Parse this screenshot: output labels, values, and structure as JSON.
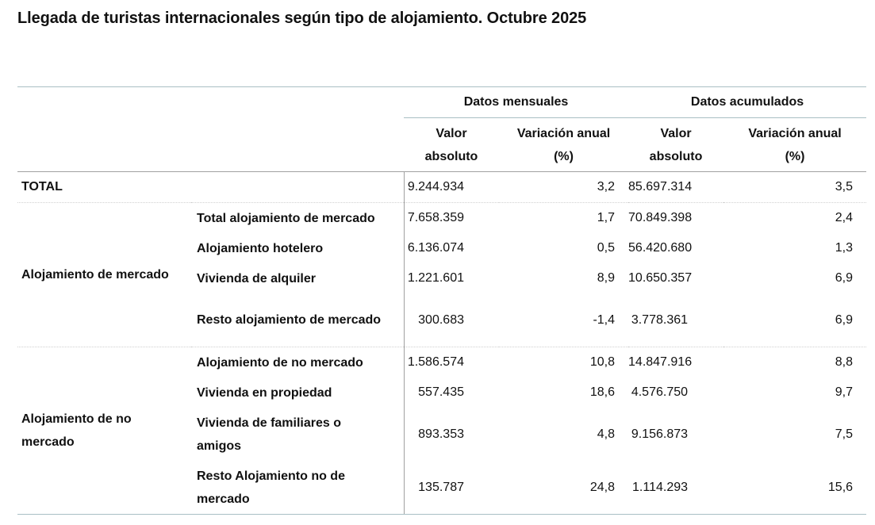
{
  "title": "Llegada de turistas internacionales según tipo de alojamiento. Octubre 2025",
  "header": {
    "groups": [
      "Datos mensuales",
      "Datos acumulados"
    ],
    "columns": [
      {
        "line1": "Valor",
        "line2": "absoluto"
      },
      {
        "line1": "Variación anual",
        "line2": "(%)"
      },
      {
        "line1": "Valor",
        "line2": "absoluto"
      },
      {
        "line1": "Variación anual",
        "line2": "(%)"
      }
    ]
  },
  "total": {
    "label": "TOTAL",
    "values": [
      "9.244.934",
      "3,2",
      "85.697.314",
      "3,5"
    ]
  },
  "groups": [
    {
      "label": "Alojamiento de mercado",
      "rows": [
        {
          "label": "Total alojamiento de mercado",
          "values": [
            "7.658.359",
            "1,7",
            "70.849.398",
            "2,4"
          ]
        },
        {
          "label": "Alojamiento hotelero",
          "values": [
            "6.136.074",
            "0,5",
            "56.420.680",
            "1,3"
          ]
        },
        {
          "label": "Vivienda de alquiler",
          "values": [
            "1.221.601",
            "8,9",
            "10.650.357",
            "6,9"
          ]
        },
        {
          "label": "Resto alojamiento de mercado",
          "values": [
            "300.683",
            "-1,4",
            "3.778.361",
            "6,9"
          ]
        }
      ]
    },
    {
      "label": "Alojamiento de no mercado",
      "rows": [
        {
          "label": "Alojamiento de no mercado",
          "values": [
            "1.586.574",
            "10,8",
            "14.847.916",
            "8,8"
          ]
        },
        {
          "label": "Vivienda en propiedad",
          "values": [
            "557.435",
            "18,6",
            "4.576.750",
            "9,7"
          ]
        },
        {
          "label": "Vivienda de familiares o amigos",
          "values": [
            "893.353",
            "4,8",
            "9.156.873",
            "7,5"
          ]
        },
        {
          "label": "Resto Alojamiento no de mercado",
          "values": [
            "135.787",
            "24,8",
            "1.114.293",
            "15,6"
          ]
        }
      ]
    }
  ]
}
